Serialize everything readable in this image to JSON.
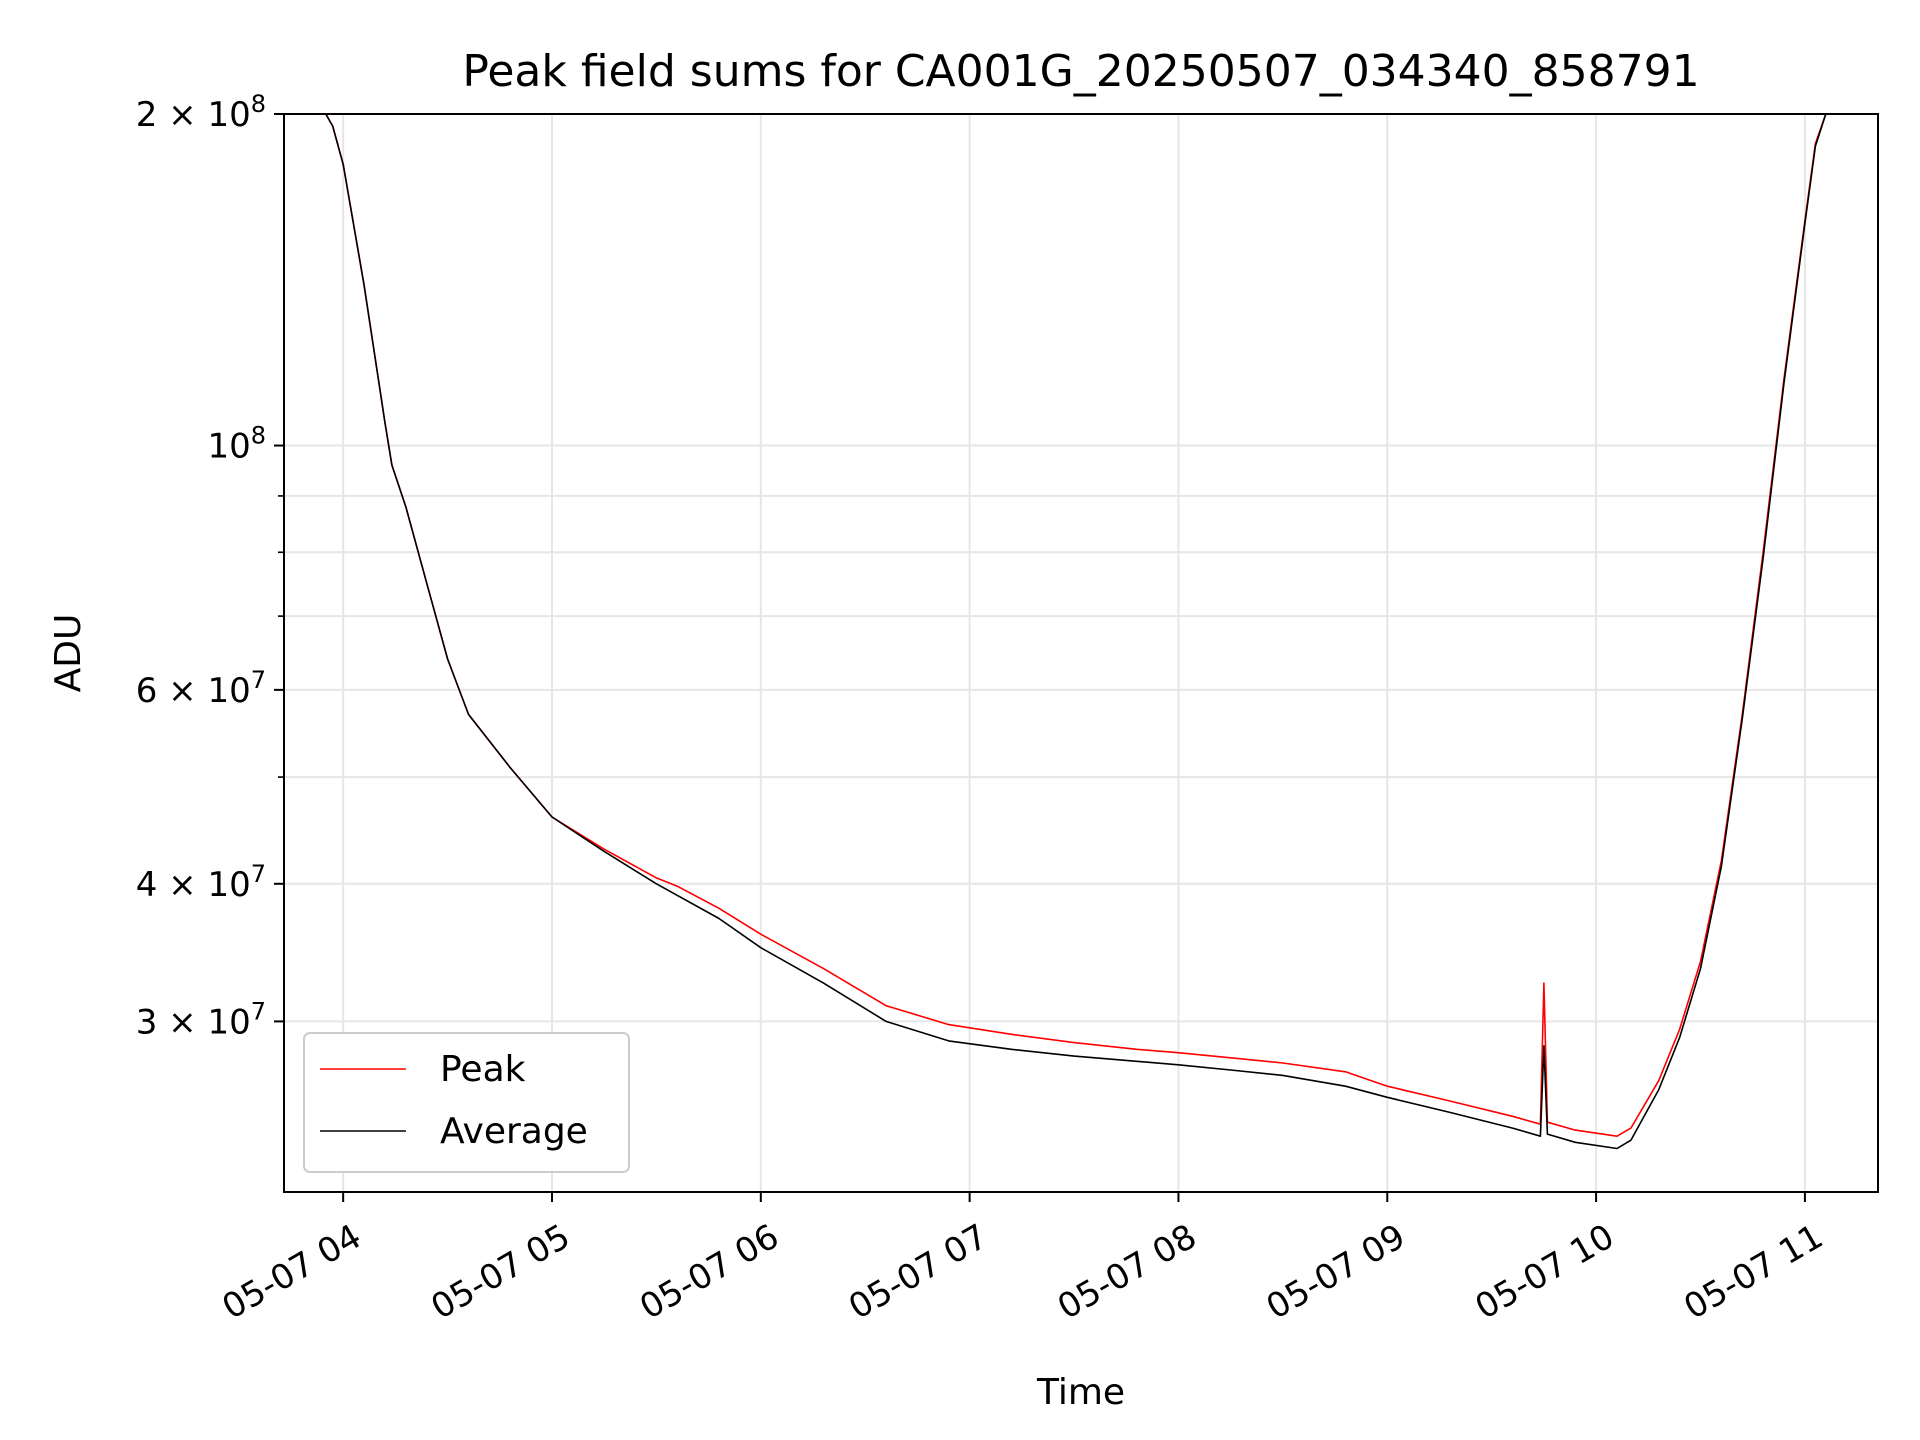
{
  "chart_data": {
    "type": "line",
    "title": "Peak field sums for CA001G_20250507_034340_858791",
    "xlabel": "Time",
    "ylabel": "ADU",
    "yscale": "log",
    "xlim": [
      "2025-05-07 03:43",
      "2025-05-07 11:21"
    ],
    "ylim": [
      21000000,
      200000000
    ],
    "grid": true,
    "legend": "lower-left",
    "x_ticks": [
      {
        "value": "2025-05-07 04:00",
        "label": "05-07 04"
      },
      {
        "value": "2025-05-07 05:00",
        "label": "05-07 05"
      },
      {
        "value": "2025-05-07 06:00",
        "label": "05-07 06"
      },
      {
        "value": "2025-05-07 07:00",
        "label": "05-07 07"
      },
      {
        "value": "2025-05-07 08:00",
        "label": "05-07 08"
      },
      {
        "value": "2025-05-07 09:00",
        "label": "05-07 09"
      },
      {
        "value": "2025-05-07 10:00",
        "label": "05-07 10"
      },
      {
        "value": "2025-05-07 11:00",
        "label": "05-07 11"
      }
    ],
    "y_major_ticks": [
      {
        "value": 30000000,
        "label_mantissa": "3",
        "label_base": "10",
        "label_exp": "7"
      },
      {
        "value": 40000000,
        "label_mantissa": "4",
        "label_base": "10",
        "label_exp": "7"
      },
      {
        "value": 60000000,
        "label_mantissa": "6",
        "label_base": "10",
        "label_exp": "7"
      },
      {
        "value": 100000000,
        "label_mantissa": "",
        "label_base": "10",
        "label_exp": "8"
      },
      {
        "value": 200000000,
        "label_mantissa": "2",
        "label_base": "10",
        "label_exp": "8"
      }
    ],
    "y_minor_ticks": [
      50000000,
      70000000,
      80000000,
      90000000
    ],
    "series": [
      {
        "name": "Peak",
        "color": "#ff0000",
        "points": [
          [
            "2025-05-07 03:43",
            200000000
          ],
          [
            "2025-05-07 03:55",
            200000000
          ],
          [
            "2025-05-07 03:57",
            195000000
          ],
          [
            "2025-05-07 04:00",
            180000000
          ],
          [
            "2025-05-07 04:06",
            140000000
          ],
          [
            "2025-05-07 04:12",
            105000000
          ],
          [
            "2025-05-07 04:14",
            96000000
          ],
          [
            "2025-05-07 04:18",
            88000000
          ],
          [
            "2025-05-07 04:24",
            75000000
          ],
          [
            "2025-05-07 04:30",
            64000000
          ],
          [
            "2025-05-07 04:36",
            57000000
          ],
          [
            "2025-05-07 04:48",
            51000000
          ],
          [
            "2025-05-07 05:00",
            46000000
          ],
          [
            "2025-05-07 05:15",
            43000000
          ],
          [
            "2025-05-07 05:30",
            40500000
          ],
          [
            "2025-05-07 05:36",
            39800000
          ],
          [
            "2025-05-07 05:48",
            38000000
          ],
          [
            "2025-05-07 06:00",
            36000000
          ],
          [
            "2025-05-07 06:18",
            33500000
          ],
          [
            "2025-05-07 06:36",
            31000000
          ],
          [
            "2025-05-07 06:54",
            29800000
          ],
          [
            "2025-05-07 07:12",
            29200000
          ],
          [
            "2025-05-07 07:30",
            28700000
          ],
          [
            "2025-05-07 07:48",
            28300000
          ],
          [
            "2025-05-07 08:00",
            28100000
          ],
          [
            "2025-05-07 08:15",
            27800000
          ],
          [
            "2025-05-07 08:30",
            27500000
          ],
          [
            "2025-05-07 08:48",
            27000000
          ],
          [
            "2025-05-07 09:00",
            26200000
          ],
          [
            "2025-05-07 09:18",
            25400000
          ],
          [
            "2025-05-07 09:36",
            24600000
          ],
          [
            "2025-05-07 09:44",
            24200000
          ],
          [
            "2025-05-07 09:45",
            32500000
          ],
          [
            "2025-05-07 09:46",
            24300000
          ],
          [
            "2025-05-07 09:54",
            23900000
          ],
          [
            "2025-05-07 10:06",
            23600000
          ],
          [
            "2025-05-07 10:10",
            24000000
          ],
          [
            "2025-05-07 10:18",
            26500000
          ],
          [
            "2025-05-07 10:24",
            29500000
          ],
          [
            "2025-05-07 10:30",
            34000000
          ],
          [
            "2025-05-07 10:36",
            42000000
          ],
          [
            "2025-05-07 10:42",
            57000000
          ],
          [
            "2025-05-07 10:48",
            80000000
          ],
          [
            "2025-05-07 10:54",
            115000000
          ],
          [
            "2025-05-07 11:00",
            160000000
          ],
          [
            "2025-05-07 11:03",
            188000000
          ],
          [
            "2025-05-07 11:06",
            200000000
          ],
          [
            "2025-05-07 11:21",
            200000000
          ]
        ]
      },
      {
        "name": "Average",
        "color": "#000000",
        "points": [
          [
            "2025-05-07 03:43",
            200000000
          ],
          [
            "2025-05-07 03:55",
            200000000
          ],
          [
            "2025-05-07 03:57",
            195000000
          ],
          [
            "2025-05-07 04:00",
            180000000
          ],
          [
            "2025-05-07 04:06",
            140000000
          ],
          [
            "2025-05-07 04:12",
            105000000
          ],
          [
            "2025-05-07 04:14",
            96000000
          ],
          [
            "2025-05-07 04:18",
            88000000
          ],
          [
            "2025-05-07 04:24",
            75000000
          ],
          [
            "2025-05-07 04:30",
            64000000
          ],
          [
            "2025-05-07 04:36",
            57000000
          ],
          [
            "2025-05-07 04:48",
            51000000
          ],
          [
            "2025-05-07 05:00",
            46000000
          ],
          [
            "2025-05-07 05:15",
            42800000
          ],
          [
            "2025-05-07 05:30",
            40000000
          ],
          [
            "2025-05-07 05:48",
            37200000
          ],
          [
            "2025-05-07 06:00",
            35000000
          ],
          [
            "2025-05-07 06:18",
            32500000
          ],
          [
            "2025-05-07 06:36",
            30000000
          ],
          [
            "2025-05-07 06:54",
            28800000
          ],
          [
            "2025-05-07 07:12",
            28300000
          ],
          [
            "2025-05-07 07:30",
            27900000
          ],
          [
            "2025-05-07 07:48",
            27600000
          ],
          [
            "2025-05-07 08:00",
            27400000
          ],
          [
            "2025-05-07 08:15",
            27100000
          ],
          [
            "2025-05-07 08:30",
            26800000
          ],
          [
            "2025-05-07 08:48",
            26200000
          ],
          [
            "2025-05-07 09:00",
            25600000
          ],
          [
            "2025-05-07 09:18",
            24800000
          ],
          [
            "2025-05-07 09:36",
            24000000
          ],
          [
            "2025-05-07 09:44",
            23600000
          ],
          [
            "2025-05-07 09:45",
            28500000
          ],
          [
            "2025-05-07 09:46",
            23700000
          ],
          [
            "2025-05-07 09:54",
            23300000
          ],
          [
            "2025-05-07 10:06",
            23000000
          ],
          [
            "2025-05-07 10:10",
            23400000
          ],
          [
            "2025-05-07 10:18",
            26000000
          ],
          [
            "2025-05-07 10:24",
            29000000
          ],
          [
            "2025-05-07 10:30",
            33500000
          ],
          [
            "2025-05-07 10:36",
            41500000
          ],
          [
            "2025-05-07 10:42",
            56500000
          ],
          [
            "2025-05-07 10:48",
            79000000
          ],
          [
            "2025-05-07 10:54",
            114000000
          ],
          [
            "2025-05-07 11:00",
            159000000
          ],
          [
            "2025-05-07 11:03",
            187000000
          ],
          [
            "2025-05-07 11:06",
            200000000
          ],
          [
            "2025-05-07 11:21",
            200000000
          ]
        ]
      }
    ]
  }
}
